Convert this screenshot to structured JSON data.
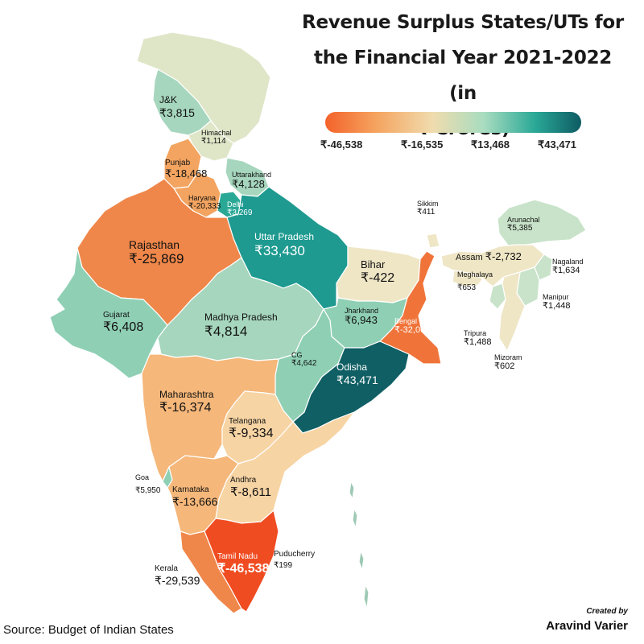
{
  "title_lines": [
    "Revenue Surplus States/UTs for",
    "the Financial Year 2021-2022 (in",
    "₹ Crores)"
  ],
  "legend": {
    "ticks": [
      "₹-46,538",
      "₹-16,535",
      "₹13,468",
      "₹43,471"
    ],
    "colors": [
      "#f4622a",
      "#f5a460",
      "#f0dcae",
      "#a8dcc0",
      "#2aa896",
      "#0e5b63"
    ]
  },
  "states": {
    "jk": {
      "name": "J&K",
      "value": "₹3,815"
    },
    "himachal": {
      "name": "Himachal",
      "value": "₹1,114"
    },
    "punjab": {
      "name": "Punjab",
      "value": "₹-18,468"
    },
    "uttarakhand": {
      "name": "Uttarakhand",
      "value": "₹4,128"
    },
    "haryana": {
      "name": "Haryana",
      "value": "₹-20,333"
    },
    "delhi": {
      "name": "Delhi",
      "value": "₹3,269"
    },
    "rajasthan": {
      "name": "Rajasthan",
      "value": "₹-25,869"
    },
    "up": {
      "name": "Uttar Pradesh",
      "value": "₹33,430"
    },
    "sikkim": {
      "name": "Sikkim",
      "value": "₹411"
    },
    "arunachal": {
      "name": "Arunachal",
      "value": "₹5,385"
    },
    "bihar": {
      "name": "Bihar",
      "value": "₹-422"
    },
    "assam": {
      "name": "Assam",
      "value": "₹-2,732"
    },
    "nagaland": {
      "name": "Nagaland",
      "value": "₹1,634"
    },
    "meghalaya": {
      "name": "Meghalaya",
      "value": "₹653"
    },
    "manipur": {
      "name": "Manipur",
      "value": "₹1,448"
    },
    "gujarat": {
      "name": "Gujarat",
      "value": "₹6,408"
    },
    "mp": {
      "name": "Madhya Pradesh",
      "value": "₹4,814"
    },
    "jharkhand": {
      "name": "Jharkhand",
      "value": "₹6,943"
    },
    "bengal": {
      "name": "Bengal",
      "value": "₹-32,000"
    },
    "tripura": {
      "name": "Tripura",
      "value": "₹1,488"
    },
    "mizoram": {
      "name": "Mizoram",
      "value": "₹602"
    },
    "cg": {
      "name": "CG",
      "value": "₹4,642"
    },
    "odisha": {
      "name": "Odisha",
      "value": "₹43,471"
    },
    "maharashtra": {
      "name": "Maharashtra",
      "value": "₹-16,374"
    },
    "telangana": {
      "name": "Telangana",
      "value": "₹-9,334"
    },
    "goa": {
      "name": "Goa",
      "value": "₹5,950"
    },
    "karnataka": {
      "name": "Karnataka",
      "value": "₹-13,666"
    },
    "andhra": {
      "name": "Andhra",
      "value": "₹-8,611"
    },
    "tamilnadu": {
      "name": "Tamil Nadu",
      "value": "₹-46,538"
    },
    "puducherry": {
      "name": "Puducherry",
      "value": "₹199"
    },
    "kerala": {
      "name": "Kerala",
      "value": "₹-29,539"
    }
  },
  "source": "Source: Budget of Indian States",
  "credit": {
    "label": "Created by",
    "author": "Aravind Varier"
  }
}
